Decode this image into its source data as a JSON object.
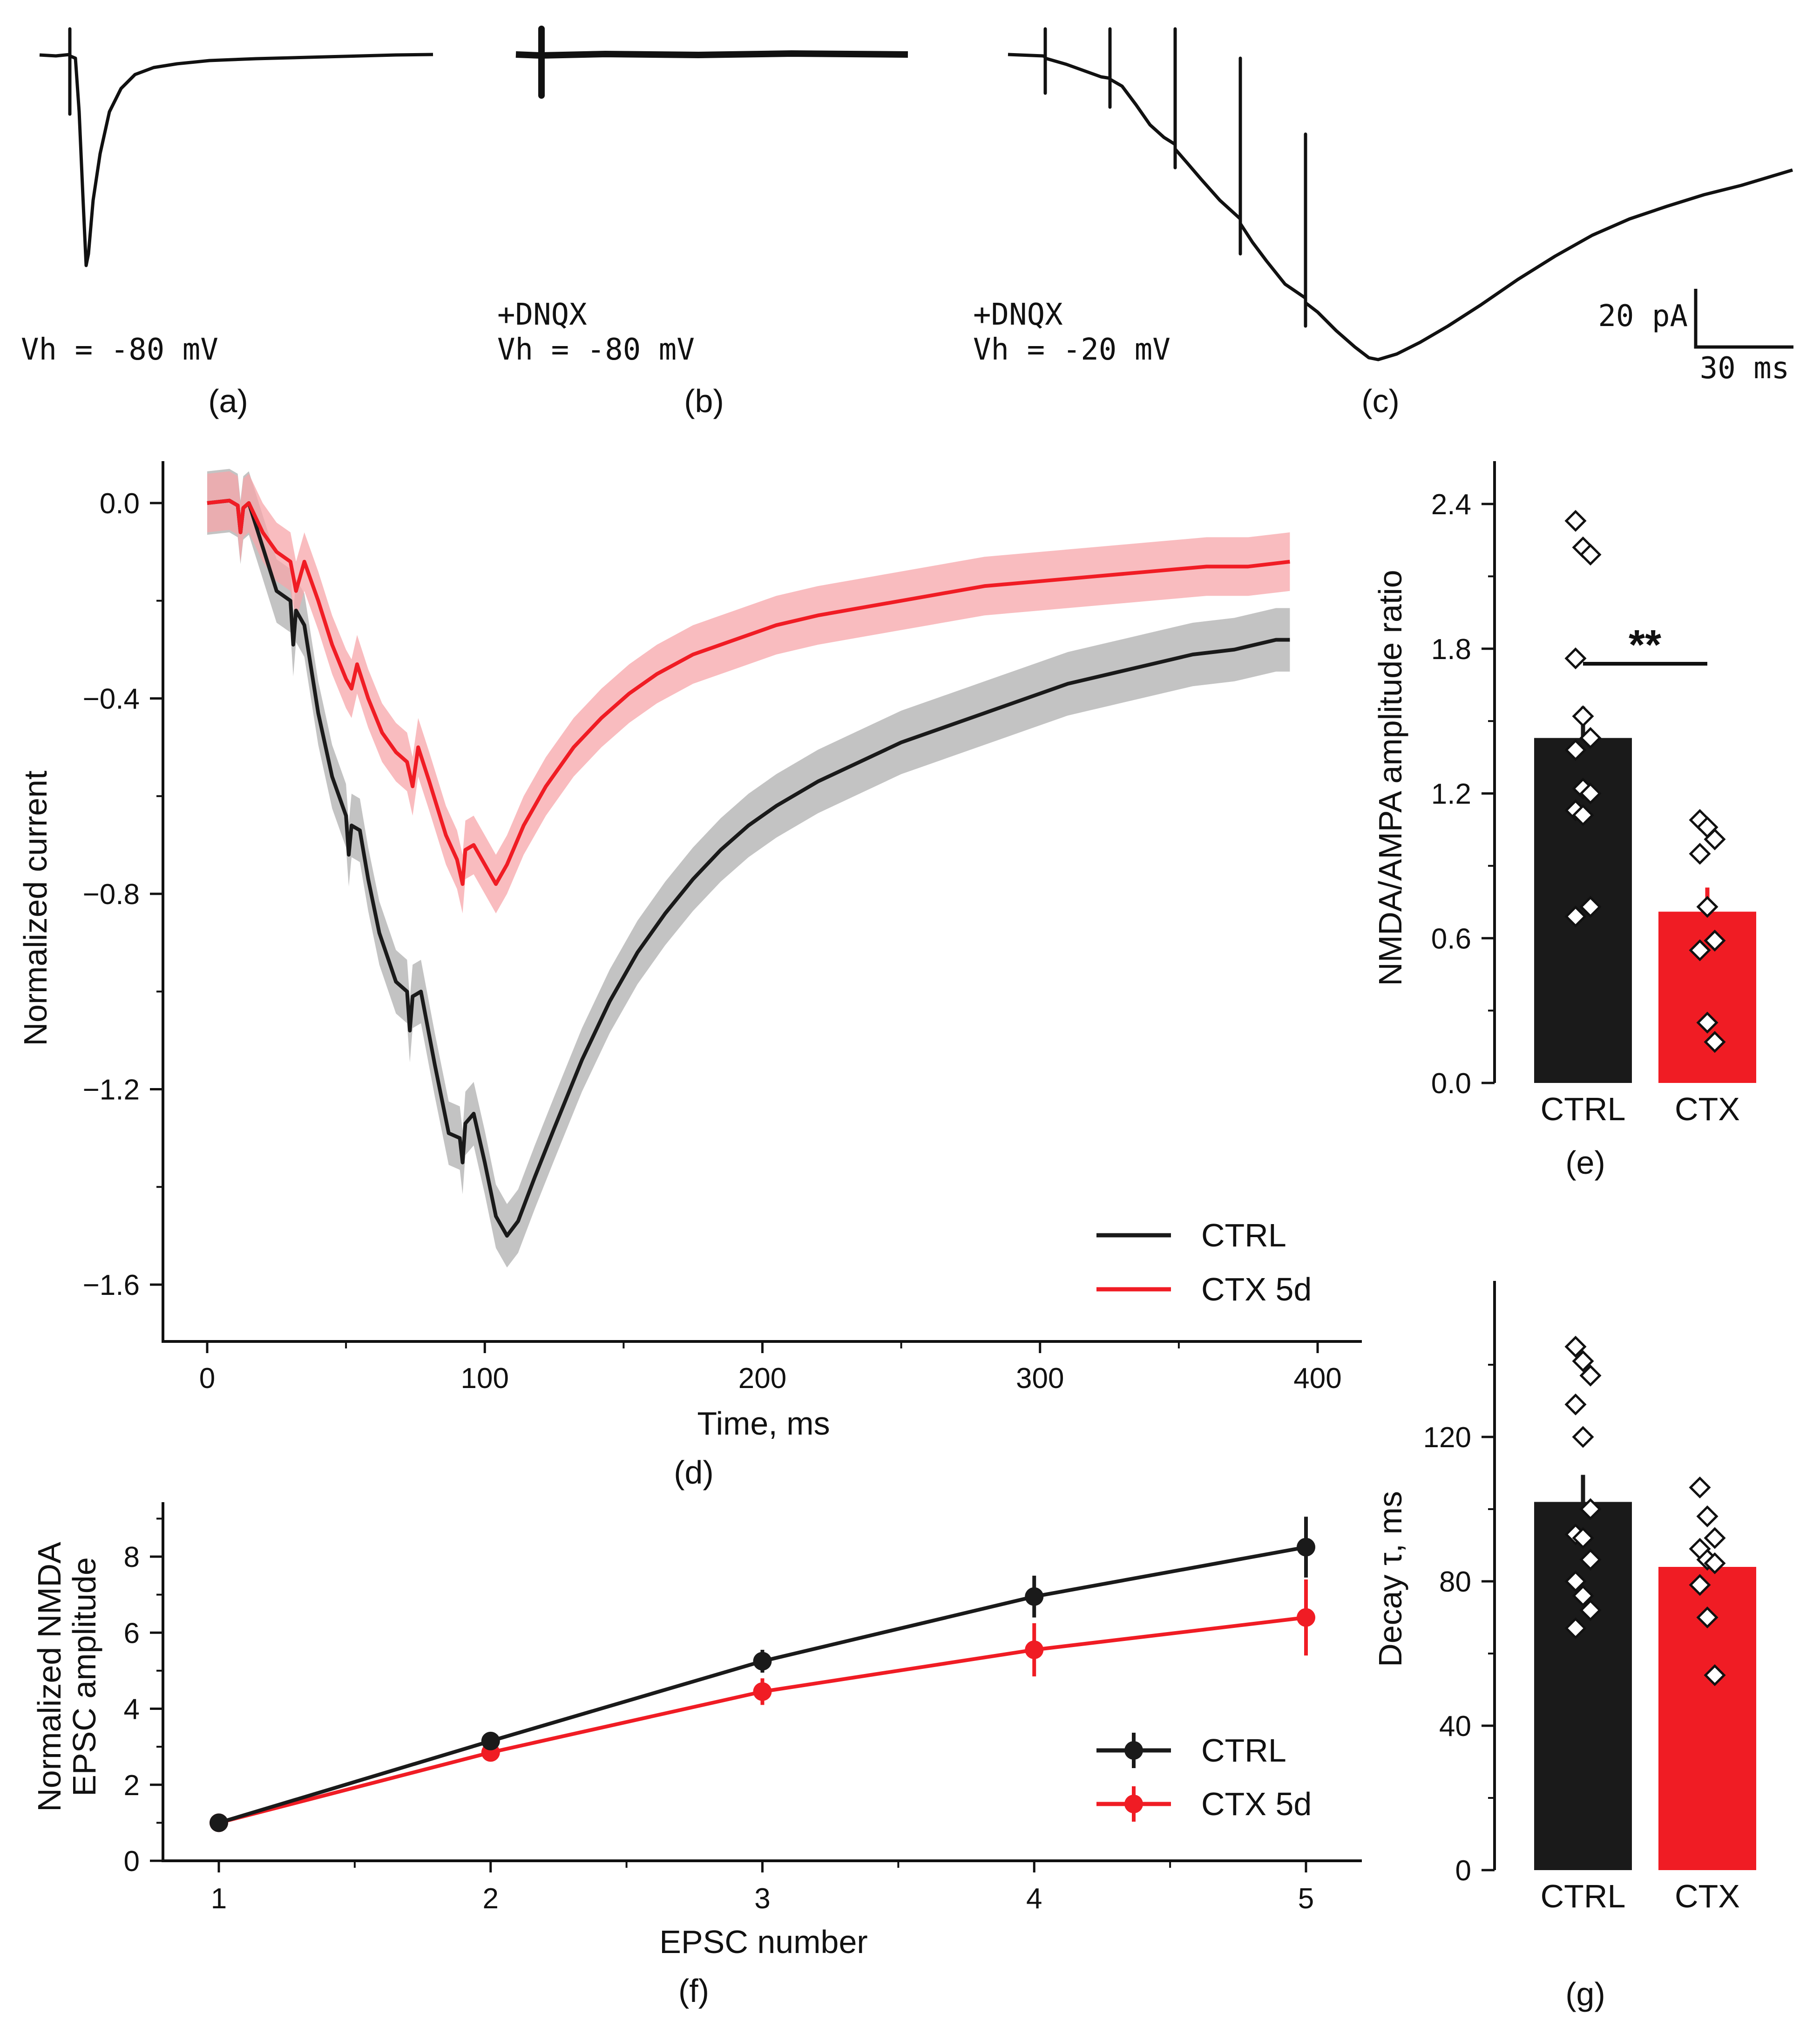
{
  "colors": {
    "ctrl": "#1a1a1a",
    "ctx": "#f01c24",
    "ctx_band": "#f7a6aa",
    "ctrl_band": "#b8b8b8",
    "axis": "#111111"
  },
  "panels": {
    "a": {
      "letter": "(a)",
      "cond": "",
      "vh": "Vh = -80 mV"
    },
    "b": {
      "letter": "(b)",
      "cond": "+DNQX",
      "vh": "Vh = -80 mV"
    },
    "c": {
      "letter": "(c)",
      "cond": "+DNQX",
      "vh": "Vh = -20 mV"
    },
    "scale": {
      "y": "20 pA",
      "x": "30 ms"
    },
    "d": {
      "letter": "(d)"
    },
    "e": {
      "letter": "(e)"
    },
    "f": {
      "letter": "(f)"
    },
    "g": {
      "letter": "(g)"
    }
  },
  "chart_data": [
    {
      "id": "d",
      "type": "line",
      "xlabel": "Time, ms",
      "ylabel": "Normalized current",
      "xlim": [
        -20,
        410
      ],
      "ylim": [
        -1.7,
        0.08
      ],
      "xticks": [
        0,
        100,
        200,
        300,
        400
      ],
      "yticks": [
        0.0,
        -0.4,
        -0.8,
        -1.2,
        -1.6
      ],
      "xtick_labels": [
        "0",
        "100",
        "200",
        "300",
        "400"
      ],
      "ytick_labels": [
        "0.0",
        "−0.4",
        "−0.8",
        "−1.2",
        "−1.6"
      ],
      "legend": {
        "position": "bottom-right",
        "labels": [
          "CTRL",
          "CTX 5d"
        ]
      },
      "series": [
        {
          "name": "CTRL",
          "color_key": "ctrl",
          "band": 0.065,
          "points": [
            [
              0,
              0
            ],
            [
              8,
              0.005
            ],
            [
              11,
              -0.005
            ],
            [
              12,
              -0.06
            ],
            [
              13,
              -0.01
            ],
            [
              15,
              0
            ],
            [
              20,
              -0.09
            ],
            [
              25,
              -0.18
            ],
            [
              30,
              -0.2
            ],
            [
              31,
              -0.29
            ],
            [
              32,
              -0.22
            ],
            [
              35,
              -0.25
            ],
            [
              40,
              -0.43
            ],
            [
              45,
              -0.56
            ],
            [
              50,
              -0.64
            ],
            [
              51,
              -0.72
            ],
            [
              52,
              -0.66
            ],
            [
              55,
              -0.67
            ],
            [
              58,
              -0.77
            ],
            [
              62,
              -0.88
            ],
            [
              68,
              -0.98
            ],
            [
              72,
              -1.0
            ],
            [
              73,
              -1.08
            ],
            [
              74,
              -1.01
            ],
            [
              77,
              -1.0
            ],
            [
              82,
              -1.15
            ],
            [
              87,
              -1.29
            ],
            [
              91,
              -1.3
            ],
            [
              92,
              -1.35
            ],
            [
              93,
              -1.27
            ],
            [
              96,
              -1.25
            ],
            [
              100,
              -1.35
            ],
            [
              104,
              -1.46
            ],
            [
              108,
              -1.5
            ],
            [
              112,
              -1.47
            ],
            [
              118,
              -1.38
            ],
            [
              125,
              -1.28
            ],
            [
              135,
              -1.14
            ],
            [
              145,
              -1.02
            ],
            [
              155,
              -0.92
            ],
            [
              165,
              -0.84
            ],
            [
              175,
              -0.77
            ],
            [
              185,
              -0.71
            ],
            [
              195,
              -0.66
            ],
            [
              205,
              -0.62
            ],
            [
              220,
              -0.57
            ],
            [
              235,
              -0.53
            ],
            [
              250,
              -0.49
            ],
            [
              265,
              -0.46
            ],
            [
              280,
              -0.43
            ],
            [
              295,
              -0.4
            ],
            [
              310,
              -0.37
            ],
            [
              325,
              -0.35
            ],
            [
              340,
              -0.33
            ],
            [
              355,
              -0.31
            ],
            [
              370,
              -0.3
            ],
            [
              385,
              -0.28
            ],
            [
              390,
              -0.28
            ]
          ]
        },
        {
          "name": "CTX 5d",
          "color_key": "ctx",
          "band": 0.06,
          "points": [
            [
              0,
              0
            ],
            [
              8,
              0.005
            ],
            [
              11,
              -0.005
            ],
            [
              12,
              -0.06
            ],
            [
              13,
              -0.01
            ],
            [
              15,
              0
            ],
            [
              20,
              -0.06
            ],
            [
              25,
              -0.1
            ],
            [
              30,
              -0.12
            ],
            [
              32,
              -0.18
            ],
            [
              35,
              -0.12
            ],
            [
              40,
              -0.2
            ],
            [
              45,
              -0.29
            ],
            [
              50,
              -0.36
            ],
            [
              52,
              -0.38
            ],
            [
              54,
              -0.33
            ],
            [
              58,
              -0.4
            ],
            [
              63,
              -0.47
            ],
            [
              68,
              -0.51
            ],
            [
              72,
              -0.53
            ],
            [
              74,
              -0.58
            ],
            [
              76,
              -0.5
            ],
            [
              80,
              -0.57
            ],
            [
              86,
              -0.68
            ],
            [
              90,
              -0.73
            ],
            [
              92,
              -0.78
            ],
            [
              93,
              -0.71
            ],
            [
              96,
              -0.7
            ],
            [
              100,
              -0.74
            ],
            [
              104,
              -0.78
            ],
            [
              108,
              -0.74
            ],
            [
              114,
              -0.66
            ],
            [
              122,
              -0.58
            ],
            [
              132,
              -0.5
            ],
            [
              142,
              -0.44
            ],
            [
              152,
              -0.39
            ],
            [
              162,
              -0.35
            ],
            [
              175,
              -0.31
            ],
            [
              190,
              -0.28
            ],
            [
              205,
              -0.25
            ],
            [
              220,
              -0.23
            ],
            [
              240,
              -0.21
            ],
            [
              260,
              -0.19
            ],
            [
              280,
              -0.17
            ],
            [
              300,
              -0.16
            ],
            [
              320,
              -0.15
            ],
            [
              340,
              -0.14
            ],
            [
              360,
              -0.13
            ],
            [
              375,
              -0.13
            ],
            [
              390,
              -0.12
            ]
          ]
        }
      ]
    },
    {
      "id": "e",
      "type": "bar",
      "ylabel": "NMDA/AMPA amplitude ratio",
      "categories": [
        "CTRL",
        "CTX"
      ],
      "values": [
        1.43,
        0.71
      ],
      "errors": [
        0.13,
        0.1
      ],
      "ylim": [
        0,
        2.6
      ],
      "yticks": [
        0.0,
        0.6,
        1.2,
        1.8,
        2.4
      ],
      "ytick_labels": [
        "0.0",
        "0.6",
        "1.2",
        "1.8",
        "2.4"
      ],
      "points": [
        [
          2.33,
          2.22,
          2.19,
          1.76,
          1.52,
          1.43,
          1.38,
          1.22,
          1.2,
          1.13,
          1.11,
          0.73,
          0.69
        ],
        [
          1.09,
          1.06,
          1.01,
          0.95,
          0.73,
          0.59,
          0.55,
          0.25,
          0.17
        ]
      ],
      "significance": "**"
    },
    {
      "id": "f",
      "type": "line",
      "xlabel": "EPSC number",
      "ylabel": [
        "Normalized NMDA",
        "EPSC amplitude"
      ],
      "xlim": [
        0.8,
        5.2
      ],
      "ylim": [
        0,
        9.4
      ],
      "xticks": [
        1,
        2,
        3,
        4,
        5
      ],
      "yticks": [
        0,
        2,
        4,
        6,
        8
      ],
      "xtick_labels": [
        "1",
        "2",
        "3",
        "4",
        "5"
      ],
      "ytick_labels": [
        "0",
        "2",
        "4",
        "6",
        "8"
      ],
      "legend": {
        "position": "bottom-right",
        "labels": [
          "CTRL",
          "CTX 5d"
        ]
      },
      "series": [
        {
          "name": "CTRL",
          "color_key": "ctrl",
          "x": [
            1,
            2,
            3,
            4,
            5
          ],
          "values": [
            1.0,
            3.15,
            5.25,
            6.95,
            8.25
          ],
          "errors": [
            0.05,
            0.2,
            0.3,
            0.55,
            0.8
          ]
        },
        {
          "name": "CTX 5d",
          "color_key": "ctx",
          "x": [
            1,
            2,
            3,
            4,
            5
          ],
          "values": [
            1.0,
            2.85,
            4.45,
            5.55,
            6.4
          ],
          "errors": [
            0.05,
            0.2,
            0.35,
            0.7,
            1.0
          ]
        }
      ]
    },
    {
      "id": "g",
      "type": "bar",
      "ylabel": "Decay τ, ms",
      "categories": [
        "CTRL",
        "CTX"
      ],
      "values": [
        102,
        84
      ],
      "errors": [
        7.5,
        0
      ],
      "ylim": [
        0,
        162
      ],
      "yticks": [
        0,
        40,
        80,
        120
      ],
      "ytick_labels": [
        "0",
        "40",
        "80",
        "120"
      ],
      "points": [
        [
          145,
          141,
          137,
          129,
          120,
          100,
          93,
          92,
          86,
          80,
          76,
          72,
          67
        ],
        [
          106,
          98,
          92,
          89,
          86,
          85,
          79,
          70,
          54
        ]
      ]
    }
  ]
}
